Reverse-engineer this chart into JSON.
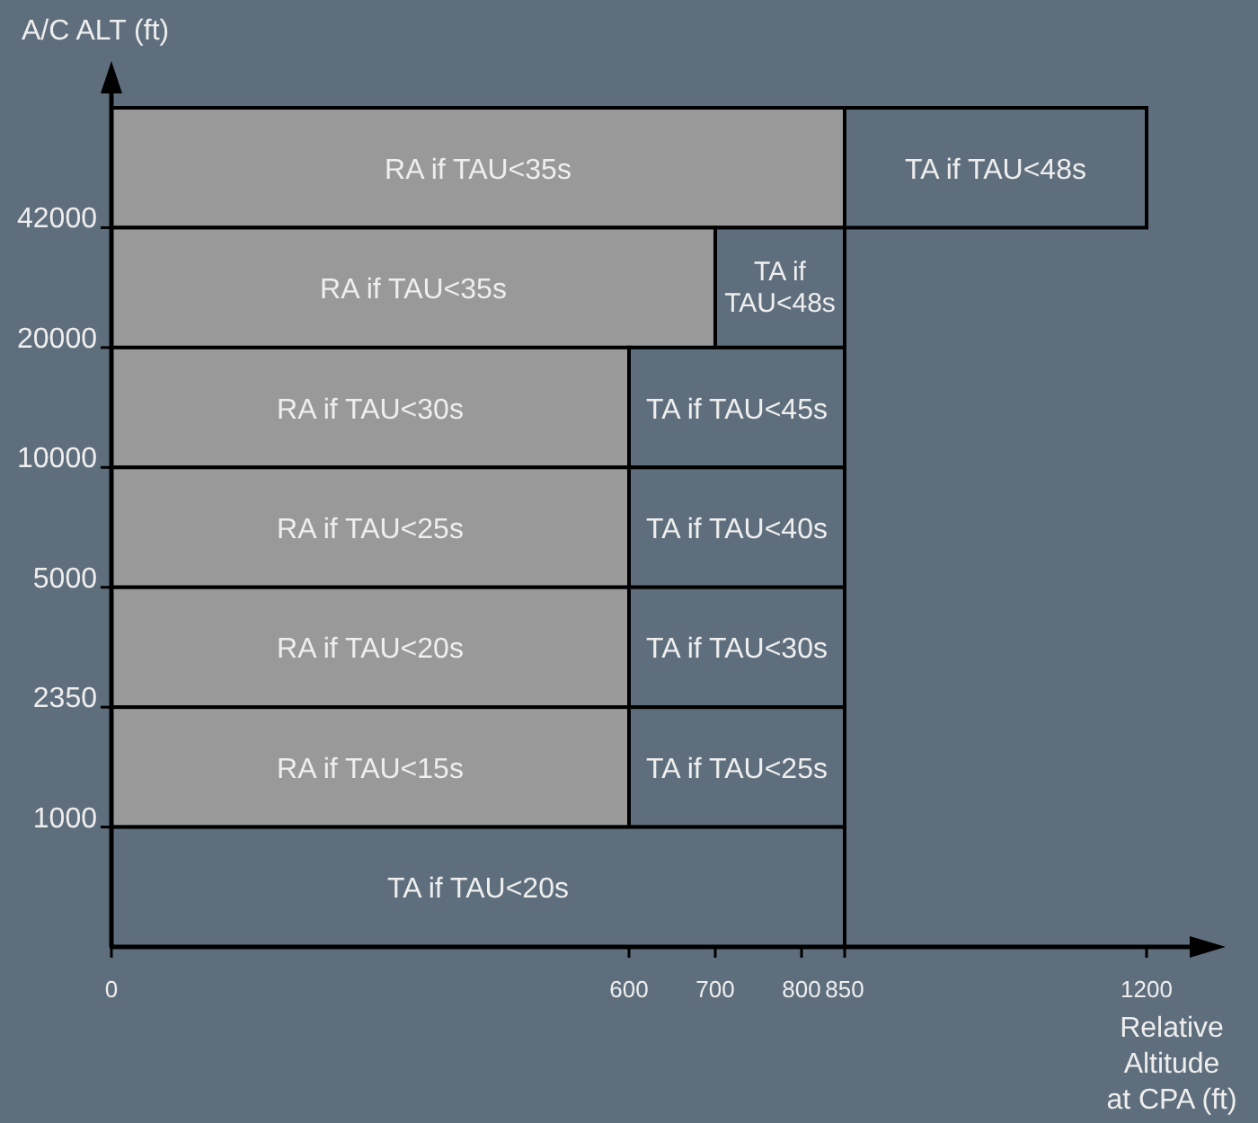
{
  "chart_data": {
    "type": "bar",
    "orientation": "horizontal",
    "stacked": true,
    "ylabel": "A/C ALT (ft)",
    "xlabel": "Relative Altitude at CPA (ft)",
    "categories": [
      null,
      null,
      null,
      null,
      null,
      null,
      null
    ],
    "series": [
      {
        "color": "#999999",
        "values": [
          850,
          700,
          600,
          600,
          600,
          600,
          null
        ],
        "value_labels": [
          "RA if TAU<35s",
          "RA if TAU<35s",
          "RA if TAU<30s",
          "RA if TAU<25s",
          "RA if TAU<20s",
          "RA if TAU<15s",
          null
        ]
      },
      {
        "color": "#5f6e7d",
        "values": [
          350,
          150,
          250,
          250,
          250,
          250,
          850
        ],
        "value_labels": [
          "TA if TAU<48s",
          "TA if TAU<48s",
          "TA if TAU<45s",
          "TA if TAU<40s",
          "TA if TAU<30s",
          "TA if TAU<25s",
          "TA if TAU<20s"
        ]
      }
    ],
    "xlim": [
      0,
      1250
    ],
    "xticks": [
      0,
      600,
      700,
      800,
      850,
      1200
    ],
    "annotations": [
      "42000",
      "20000",
      "10000",
      "5000",
      "2350",
      "1000"
    ]
  }
}
